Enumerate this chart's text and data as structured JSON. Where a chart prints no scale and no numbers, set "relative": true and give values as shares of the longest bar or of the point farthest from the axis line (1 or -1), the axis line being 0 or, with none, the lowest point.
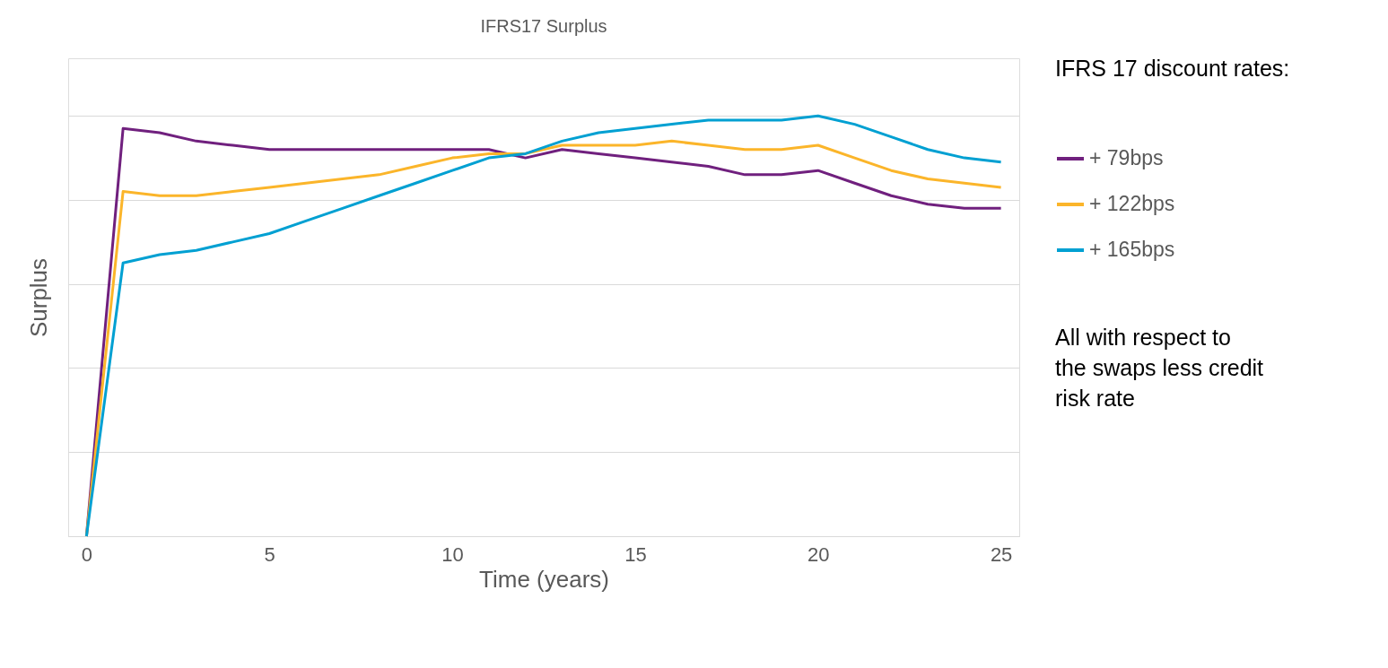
{
  "chart_data": {
    "type": "line",
    "title": "IFRS17 Surplus",
    "xlabel": "Time (years)",
    "ylabel": "Surplus",
    "legend_title": "IFRS 17 discount rates:",
    "relative": true,
    "x": [
      0,
      1,
      2,
      3,
      4,
      5,
      6,
      7,
      8,
      9,
      10,
      11,
      12,
      13,
      14,
      15,
      16,
      17,
      18,
      19,
      20,
      21,
      22,
      23,
      24,
      25
    ],
    "xlim": [
      -0.5,
      25.5
    ],
    "xticks": [
      0,
      5,
      10,
      15,
      20,
      25
    ],
    "grid": "y",
    "legend": "right",
    "line_style": "solid",
    "marker": "none",
    "series": [
      {
        "name": "+ 79bps",
        "color": "#70207e",
        "values": [
          0,
          0.97,
          0.96,
          0.94,
          0.93,
          0.92,
          0.92,
          0.92,
          0.92,
          0.92,
          0.92,
          0.92,
          0.9,
          0.92,
          0.91,
          0.9,
          0.89,
          0.88,
          0.86,
          0.86,
          0.87,
          0.84,
          0.81,
          0.79,
          0.78,
          0.78
        ]
      },
      {
        "name": "+ 122bps",
        "color": "#fbb52a",
        "values": [
          0,
          0.82,
          0.81,
          0.81,
          0.82,
          0.83,
          0.84,
          0.85,
          0.86,
          0.88,
          0.9,
          0.91,
          0.91,
          0.93,
          0.93,
          0.93,
          0.94,
          0.93,
          0.92,
          0.92,
          0.93,
          0.9,
          0.87,
          0.85,
          0.84,
          0.83
        ]
      },
      {
        "name": "+ 165bps",
        "color": "#00a0d2",
        "values": [
          0,
          0.65,
          0.67,
          0.68,
          0.7,
          0.72,
          0.75,
          0.78,
          0.81,
          0.84,
          0.87,
          0.9,
          0.91,
          0.94,
          0.96,
          0.97,
          0.98,
          0.99,
          0.99,
          0.99,
          1,
          0.98,
          0.95,
          0.92,
          0.9,
          0.89
        ]
      }
    ],
    "annotations": [
      "All with respect to the swaps less credit risk rate"
    ]
  }
}
